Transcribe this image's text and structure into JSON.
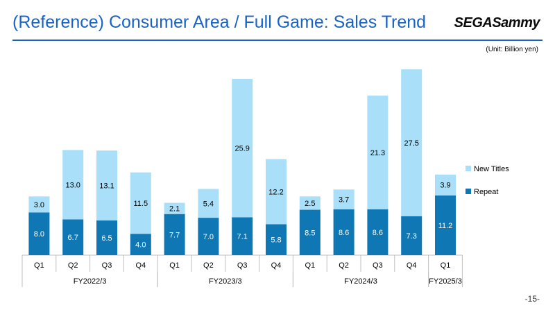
{
  "header": {
    "title": "(Reference) Consumer Area / Full Game: Sales Trend",
    "logo_text": "SEGASammy"
  },
  "unit_note": "(Unit: Billion yen)",
  "page_number": "-15-",
  "colors": {
    "title": "#1a63c6",
    "repeat": "#0f78b4",
    "new_titles": "#a9dff8"
  },
  "chart_data": {
    "type": "bar",
    "stacked": true,
    "categories": [
      "Q1",
      "Q2",
      "Q3",
      "Q4",
      "Q1",
      "Q2",
      "Q3",
      "Q4",
      "Q1",
      "Q2",
      "Q3",
      "Q4",
      "Q1"
    ],
    "groups": [
      {
        "label": "FY2022/3",
        "count": 4
      },
      {
        "label": "FY2023/3",
        "count": 4
      },
      {
        "label": "FY2024/3",
        "count": 4
      },
      {
        "label": "FY2025/3",
        "count": 1
      }
    ],
    "series": [
      {
        "name": "Repeat",
        "values": [
          8.0,
          6.7,
          6.5,
          4.0,
          7.7,
          7.0,
          7.1,
          5.8,
          8.5,
          8.6,
          8.6,
          7.3,
          11.2
        ]
      },
      {
        "name": "New Titles",
        "values": [
          3.0,
          13.0,
          13.1,
          11.5,
          2.1,
          5.4,
          25.9,
          12.2,
          2.5,
          3.7,
          21.3,
          27.5,
          3.9
        ]
      }
    ],
    "legend_position": "right",
    "ylim": [
      0,
      35
    ],
    "ylabel": "Billion yen"
  }
}
